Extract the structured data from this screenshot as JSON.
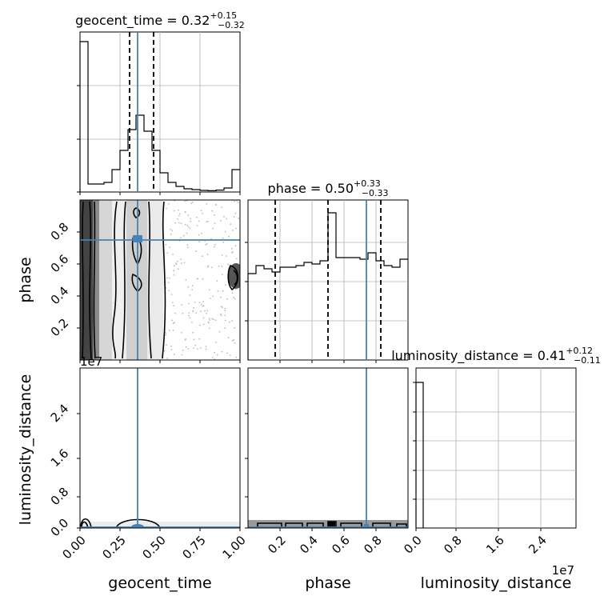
{
  "chart_data": {
    "type": "corner",
    "parameters": [
      "geocent_time",
      "phase",
      "luminosity_distance"
    ],
    "truths": {
      "geocent_time": 0.36,
      "phase": 0.74,
      "luminosity_distance": 0.0
    },
    "panels": [
      {
        "id": "geocent_time-hist",
        "type": "histogram",
        "title": {
          "name": "geocent_time",
          "median": "0.32",
          "plus": "+0.15",
          "minus": "−0.32"
        },
        "range": [
          0,
          1
        ],
        "bin_heights": [
          0.94,
          0.05,
          0.05,
          0.06,
          0.14,
          0.26,
          0.39,
          0.48,
          0.38,
          0.26,
          0.12,
          0.06,
          0.035,
          0.02,
          0.015,
          0.01,
          0.008,
          0.012,
          0.025,
          0.14
        ],
        "quantiles": [
          0.31,
          0.46
        ],
        "truth": 0.36
      },
      {
        "id": "phase-hist",
        "type": "histogram",
        "title": {
          "name": "phase",
          "median": "0.50",
          "plus": "+0.33",
          "minus": "−0.33"
        },
        "range": [
          0,
          1
        ],
        "bin_heights": [
          0.54,
          0.59,
          0.57,
          0.55,
          0.58,
          0.58,
          0.59,
          0.61,
          0.6,
          0.62,
          0.92,
          0.64,
          0.64,
          0.64,
          0.63,
          0.67,
          0.62,
          0.59,
          0.58,
          0.63
        ],
        "quantiles": [
          0.17,
          0.5,
          0.83
        ],
        "truth": 0.74
      },
      {
        "id": "luminosity_distance-hist",
        "type": "histogram",
        "title": {
          "name": "luminosity_distance",
          "median": "0.41",
          "plus": "+0.12",
          "minus": "−0.11"
        },
        "range": [
          0,
          30000000
        ],
        "bin_heights": [
          1.0,
          0.0,
          0.0,
          0.0,
          0.0,
          0.0,
          0.0,
          0.0,
          0.0,
          0.0,
          0.0,
          0.0,
          0.0,
          0.0,
          0.0,
          0.0,
          0.0,
          0.0,
          0.0,
          0.0
        ],
        "truth": 0.0
      },
      {
        "id": "geocent_time-phase",
        "type": "2d-density",
        "x": "geocent_time",
        "y": "phase",
        "xlim": [
          0,
          1
        ],
        "ylim": [
          0.0,
          1.0
        ]
      },
      {
        "id": "geocent_time-luminosity_distance",
        "type": "2d-density",
        "x": "geocent_time",
        "y": "luminosity_distance",
        "xlim": [
          0,
          1
        ],
        "ylim": [
          0,
          30000000
        ]
      },
      {
        "id": "phase-luminosity_distance",
        "type": "2d-density",
        "x": "phase",
        "y": "luminosity_distance",
        "xlim": [
          0,
          1
        ],
        "ylim": [
          0,
          30000000
        ]
      }
    ],
    "axes": {
      "x_labels": [
        "geocent_time",
        "phase",
        "luminosity_distance"
      ],
      "y_labels": [
        "phase",
        "luminosity_distance"
      ],
      "ticks": {
        "geocent_time_x": [
          "0.00",
          "0.25",
          "0.50",
          "0.75",
          "1.00"
        ],
        "phase_x": [
          "0.2",
          "0.4",
          "0.6",
          "0.8"
        ],
        "luminosity_distance_x": [
          "0.0",
          "0.8",
          "1.6",
          "2.4"
        ],
        "phase_y": [
          "0.2",
          "0.4",
          "0.6",
          "0.8"
        ],
        "luminosity_distance_y": [
          "0.0",
          "0.8",
          "1.6",
          "2.4"
        ]
      },
      "offset_text": "1e7"
    },
    "colors": {
      "truth": "#4682b4",
      "line": "#000000",
      "grid": "#b0b0b0",
      "scatter": "#bbbbbb",
      "fill_dark": "#444444",
      "fill_mid": "#9a9a9a",
      "fill_light": "#e4e4e4"
    },
    "grid": true
  }
}
